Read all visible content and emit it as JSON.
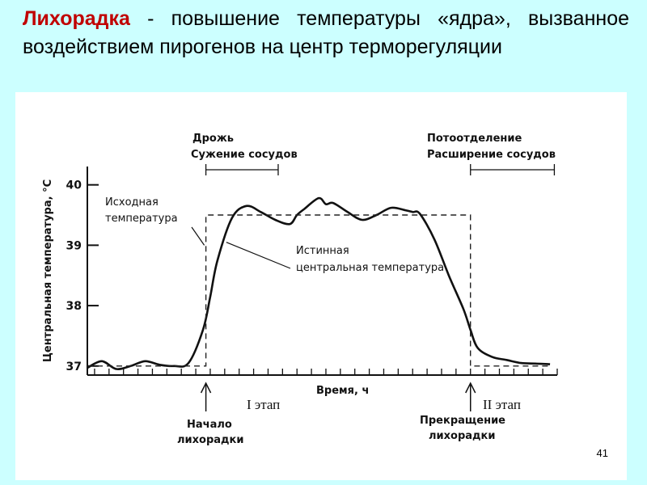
{
  "slide": {
    "title_accent": "Лихорадка",
    "title_rest": " - повышение температуры «ядра», вызванное воздействием пирогенов на центр терморегуляции",
    "page_number": "41"
  },
  "chart_data": {
    "type": "line",
    "title": "",
    "xlabel": "Время, ч",
    "ylabel": "Центральная температура, °С",
    "ylim": [
      36.85,
      40.25
    ],
    "xlim": [
      0,
      32.5
    ],
    "yticks": [
      "37",
      "38",
      "39",
      "40"
    ],
    "x_ticks_count": 33,
    "grid": false,
    "series": [
      {
        "name": "Истинная центральная температура",
        "style": "solid",
        "x": [
          0,
          1,
          2,
          3,
          4,
          5,
          6,
          7,
          8,
          8.5,
          9,
          10,
          11,
          12,
          13,
          14,
          14.5,
          15,
          16,
          16.5,
          17,
          18,
          19,
          20,
          21,
          22,
          22.5,
          23,
          24,
          25,
          26,
          26.5,
          27,
          28,
          29,
          30,
          31,
          32
        ],
        "y": [
          36.97,
          37.08,
          36.95,
          37.0,
          37.08,
          37.02,
          37.0,
          37.05,
          37.6,
          38.15,
          38.75,
          39.45,
          39.65,
          39.55,
          39.42,
          39.35,
          39.5,
          39.6,
          39.78,
          39.68,
          39.7,
          39.55,
          39.42,
          39.5,
          39.62,
          39.58,
          39.55,
          39.52,
          39.1,
          38.5,
          37.95,
          37.6,
          37.3,
          37.15,
          37.1,
          37.05,
          37.04,
          37.03
        ]
      },
      {
        "name": "Исходная температура",
        "style": "dashed",
        "x": [
          0,
          8.2,
          8.2,
          26.5,
          26.5,
          32
        ],
        "y": [
          37.0,
          37.0,
          39.5,
          39.5,
          37.0,
          37.0
        ]
      }
    ],
    "annotations": [
      {
        "id": "shiver",
        "lines": [
          "Дрожь",
          "Сужение сосудов"
        ],
        "bracket": [
          8.2,
          13.2
        ]
      },
      {
        "id": "sweat",
        "lines": [
          "Потоотделение",
          "Расширение сосудов"
        ],
        "bracket": [
          26.5,
          32.3
        ]
      },
      {
        "id": "initial",
        "lines": [
          "Исходная",
          "температура"
        ]
      },
      {
        "id": "true",
        "lines": [
          "Истинная",
          "центральная температура"
        ]
      },
      {
        "id": "onset",
        "lines": [
          "Начало",
          "лихорадки"
        ],
        "x": 8.2
      },
      {
        "id": "stop",
        "lines": [
          "Прекращение",
          "лихорадки"
        ],
        "x": 26.5
      }
    ],
    "stages": [
      "I этап",
      "II этап"
    ]
  }
}
